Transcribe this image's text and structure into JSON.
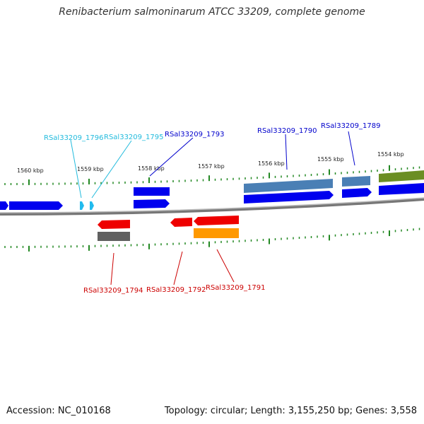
{
  "title": "Renibacterium salmoninarum ATCC 33209, complete genome",
  "footer": {
    "accession": "Accession: NC_010168",
    "summary": "Topology: circular; Length: 3,155,250 bp; Genes: 3,558"
  },
  "colors": {
    "forward_gene": "#0000ee",
    "reverse_gene": "#ee0000",
    "small_gene": "#22bbee",
    "blue_feature": "#4a7fb5",
    "olive_feature": "#6b8e23",
    "gray_feature": "#606060",
    "orange_feature": "#ff9900",
    "tick_green": "#228822",
    "backbone": "#888888"
  },
  "ticks": [
    {
      "label": "1560 kbp"
    },
    {
      "label": "1559 kbp"
    },
    {
      "label": "1558 kbp"
    },
    {
      "label": "1557 kbp"
    },
    {
      "label": "1556 kbp"
    },
    {
      "label": "1555 kbp"
    },
    {
      "label": "1554 kbp"
    }
  ],
  "gene_labels": [
    {
      "text": "RSal33209_1796",
      "color": "#22bbdd"
    },
    {
      "text": "RSal33209_1795",
      "color": "#22bbdd"
    },
    {
      "text": "RSal33209_1793",
      "color": "#0000cc"
    },
    {
      "text": "RSal33209_1790",
      "color": "#0000cc"
    },
    {
      "text": "RSal33209_1789",
      "color": "#0000cc"
    },
    {
      "text": "RSal33209_1794",
      "color": "#cc0000"
    },
    {
      "text": "RSal33209_1792",
      "color": "#cc0000"
    },
    {
      "text": "RSal33209_1791",
      "color": "#cc0000"
    }
  ]
}
